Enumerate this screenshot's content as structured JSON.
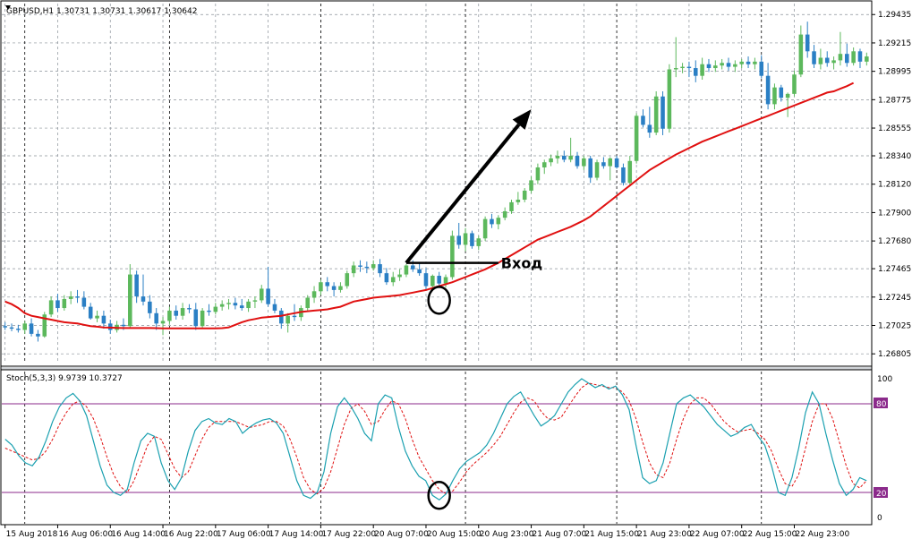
{
  "chart_data": {
    "type": "candlestick",
    "title": "GBPUSD,H1  1.30731 1.30731 1.30617 1.30642",
    "price_axis": {
      "ylim": [
        1.2673,
        1.2952
      ],
      "ticks": [
        "1.29435",
        "1.29215",
        "1.28995",
        "1.28775",
        "1.28555",
        "1.28340",
        "1.28120",
        "1.27900",
        "1.27680",
        "1.27465",
        "1.27245",
        "1.27025",
        "1.26805"
      ]
    },
    "colors": {
      "bull": "#5cb85c",
      "bear": "#2a7fc4",
      "ma": "#e01010",
      "annotation": "#000000",
      "stoch_main": "#1aa0b0",
      "stoch_signal": "#e01010",
      "level": "#8b2a8b",
      "grid": "#8a9199"
    },
    "candles": [
      [
        1.2702,
        1.2705,
        1.2699,
        1.2701
      ],
      [
        1.2701,
        1.2704,
        1.2698,
        1.27
      ],
      [
        1.27,
        1.2703,
        1.2697,
        1.2699
      ],
      [
        1.2699,
        1.2706,
        1.2696,
        1.2704
      ],
      [
        1.2704,
        1.2708,
        1.2694,
        1.2696
      ],
      [
        1.2696,
        1.2699,
        1.269,
        1.2694
      ],
      [
        1.2694,
        1.2713,
        1.2693,
        1.2711
      ],
      [
        1.2711,
        1.2725,
        1.2709,
        1.2722
      ],
      [
        1.2722,
        1.2727,
        1.2713,
        1.2716
      ],
      [
        1.2716,
        1.2726,
        1.2714,
        1.2723
      ],
      [
        1.2723,
        1.2729,
        1.2719,
        1.2725
      ],
      [
        1.2725,
        1.273,
        1.272,
        1.2724
      ],
      [
        1.2724,
        1.2729,
        1.2715,
        1.2717
      ],
      [
        1.2717,
        1.272,
        1.2707,
        1.2708
      ],
      [
        1.2708,
        1.2714,
        1.2705,
        1.271
      ],
      [
        1.271,
        1.2714,
        1.27,
        1.2704
      ],
      [
        1.2704,
        1.2707,
        1.2696,
        1.2699
      ],
      [
        1.2699,
        1.2706,
        1.2697,
        1.2703
      ],
      [
        1.2703,
        1.2708,
        1.2699,
        1.2702
      ],
      [
        1.2702,
        1.275,
        1.27,
        1.2742
      ],
      [
        1.2742,
        1.2745,
        1.272,
        1.2725
      ],
      [
        1.2725,
        1.2742,
        1.2718,
        1.2721
      ],
      [
        1.2721,
        1.2726,
        1.2708,
        1.2712
      ],
      [
        1.2712,
        1.2716,
        1.2699,
        1.2704
      ],
      [
        1.2704,
        1.2709,
        1.2695,
        1.2706
      ],
      [
        1.2706,
        1.2717,
        1.2703,
        1.2714
      ],
      [
        1.2714,
        1.2718,
        1.2707,
        1.271
      ],
      [
        1.271,
        1.272,
        1.2707,
        1.2716
      ],
      [
        1.2716,
        1.2719,
        1.2712,
        1.2715
      ],
      [
        1.2715,
        1.272,
        1.2699,
        1.2702
      ],
      [
        1.2702,
        1.2716,
        1.27,
        1.2714
      ],
      [
        1.2714,
        1.2719,
        1.271,
        1.2713
      ],
      [
        1.2713,
        1.272,
        1.2711,
        1.2717
      ],
      [
        1.2717,
        1.2722,
        1.2714,
        1.2719
      ],
      [
        1.2719,
        1.2723,
        1.2715,
        1.272
      ],
      [
        1.272,
        1.2724,
        1.2715,
        1.2718
      ],
      [
        1.2718,
        1.2723,
        1.2714,
        1.2716
      ],
      [
        1.2716,
        1.2723,
        1.2713,
        1.2721
      ],
      [
        1.2721,
        1.2725,
        1.2716,
        1.2722
      ],
      [
        1.2722,
        1.2734,
        1.272,
        1.2731
      ],
      [
        1.2731,
        1.2748,
        1.2717,
        1.2719
      ],
      [
        1.2719,
        1.2723,
        1.2712,
        1.2714
      ],
      [
        1.2714,
        1.2716,
        1.27,
        1.2704
      ],
      [
        1.2704,
        1.2712,
        1.2697,
        1.271
      ],
      [
        1.271,
        1.2719,
        1.2706,
        1.2709
      ],
      [
        1.2709,
        1.2718,
        1.2706,
        1.2716
      ],
      [
        1.2716,
        1.2726,
        1.2714,
        1.2724
      ],
      [
        1.2724,
        1.2733,
        1.272,
        1.2729
      ],
      [
        1.2729,
        1.2738,
        1.2726,
        1.2736
      ],
      [
        1.2736,
        1.274,
        1.2729,
        1.2733
      ],
      [
        1.2733,
        1.2736,
        1.2725,
        1.273
      ],
      [
        1.273,
        1.2736,
        1.2728,
        1.2733
      ],
      [
        1.2733,
        1.2745,
        1.2731,
        1.2743
      ],
      [
        1.2743,
        1.2752,
        1.274,
        1.2749
      ],
      [
        1.2749,
        1.2753,
        1.2744,
        1.2748
      ],
      [
        1.2748,
        1.2752,
        1.2743,
        1.2747
      ],
      [
        1.2747,
        1.2753,
        1.2745,
        1.275
      ],
      [
        1.275,
        1.2754,
        1.274,
        1.2743
      ],
      [
        1.2743,
        1.2747,
        1.2734,
        1.2736
      ],
      [
        1.2736,
        1.2744,
        1.2733,
        1.274
      ],
      [
        1.274,
        1.2746,
        1.2737,
        1.2742
      ],
      [
        1.2742,
        1.275,
        1.274,
        1.2749
      ],
      [
        1.2749,
        1.2753,
        1.2744,
        1.2746
      ],
      [
        1.2746,
        1.2751,
        1.2741,
        1.2743
      ],
      [
        1.2743,
        1.2747,
        1.273,
        1.2733
      ],
      [
        1.2733,
        1.2742,
        1.273,
        1.2741
      ],
      [
        1.2741,
        1.2744,
        1.2732,
        1.2735
      ],
      [
        1.2735,
        1.2742,
        1.2732,
        1.274
      ],
      [
        1.274,
        1.2776,
        1.2738,
        1.2772
      ],
      [
        1.2772,
        1.2782,
        1.2762,
        1.2765
      ],
      [
        1.2765,
        1.2778,
        1.276,
        1.2774
      ],
      [
        1.2774,
        1.2776,
        1.2762,
        1.2764
      ],
      [
        1.2764,
        1.2772,
        1.2761,
        1.277
      ],
      [
        1.277,
        1.2787,
        1.2768,
        1.2785
      ],
      [
        1.2785,
        1.2789,
        1.2778,
        1.2781
      ],
      [
        1.2781,
        1.2788,
        1.2777,
        1.2786
      ],
      [
        1.2786,
        1.2794,
        1.2784,
        1.2791
      ],
      [
        1.2791,
        1.28,
        1.2789,
        1.2798
      ],
      [
        1.2798,
        1.2806,
        1.2796,
        1.28
      ],
      [
        1.28,
        1.2809,
        1.2798,
        1.2807
      ],
      [
        1.2807,
        1.2818,
        1.2805,
        1.2815
      ],
      [
        1.2815,
        1.2828,
        1.2812,
        1.2825
      ],
      [
        1.2825,
        1.2831,
        1.282,
        1.2829
      ],
      [
        1.2829,
        1.2835,
        1.2826,
        1.2832
      ],
      [
        1.2832,
        1.2838,
        1.2828,
        1.2834
      ],
      [
        1.2834,
        1.2838,
        1.2829,
        1.2831
      ],
      [
        1.2831,
        1.2848,
        1.2829,
        1.2834
      ],
      [
        1.2834,
        1.2837,
        1.2824,
        1.2826
      ],
      [
        1.2826,
        1.2834,
        1.2823,
        1.2832
      ],
      [
        1.2832,
        1.2834,
        1.2813,
        1.2817
      ],
      [
        1.2817,
        1.2831,
        1.2815,
        1.2829
      ],
      [
        1.2829,
        1.2833,
        1.2824,
        1.2826
      ],
      [
        1.2826,
        1.2833,
        1.2815,
        1.2832
      ],
      [
        1.2832,
        1.2834,
        1.2824,
        1.2825
      ],
      [
        1.2825,
        1.2828,
        1.2811,
        1.2813
      ],
      [
        1.2813,
        1.2834,
        1.2811,
        1.283
      ],
      [
        1.283,
        1.2867,
        1.2828,
        1.2865
      ],
      [
        1.2865,
        1.287,
        1.2856,
        1.2858
      ],
      [
        1.2858,
        1.2872,
        1.2848,
        1.2852
      ],
      [
        1.2852,
        1.2884,
        1.285,
        1.288
      ],
      [
        1.288,
        1.2884,
        1.285,
        1.2855
      ],
      [
        1.2855,
        1.2905,
        1.2852,
        1.2901
      ],
      [
        1.2901,
        1.2926,
        1.2895,
        1.2902
      ],
      [
        1.2902,
        1.2906,
        1.2898,
        1.2903
      ],
      [
        1.2903,
        1.2907,
        1.2895,
        1.2902
      ],
      [
        1.2902,
        1.2908,
        1.2891,
        1.2896
      ],
      [
        1.2896,
        1.291,
        1.2893,
        1.2905
      ],
      [
        1.2905,
        1.2909,
        1.2899,
        1.2902
      ],
      [
        1.2902,
        1.2908,
        1.2899,
        1.2904
      ],
      [
        1.2904,
        1.2909,
        1.2901,
        1.2906
      ],
      [
        1.2906,
        1.291,
        1.29,
        1.2903
      ],
      [
        1.2903,
        1.2908,
        1.2899,
        1.2905
      ],
      [
        1.2905,
        1.2909,
        1.2902,
        1.2907
      ],
      [
        1.2907,
        1.2911,
        1.2902,
        1.2905
      ],
      [
        1.2905,
        1.291,
        1.2901,
        1.2907
      ],
      [
        1.2907,
        1.2912,
        1.2894,
        1.2896
      ],
      [
        1.2896,
        1.2906,
        1.287,
        1.2874
      ],
      [
        1.2874,
        1.289,
        1.287,
        1.2887
      ],
      [
        1.2887,
        1.2889,
        1.2876,
        1.2879
      ],
      [
        1.2879,
        1.2883,
        1.2864,
        1.2882
      ],
      [
        1.2882,
        1.29,
        1.288,
        1.2897
      ],
      [
        1.2897,
        1.2935,
        1.2895,
        1.2928
      ],
      [
        1.2928,
        1.2938,
        1.291,
        1.2915
      ],
      [
        1.2915,
        1.292,
        1.2902,
        1.2905
      ],
      [
        1.2905,
        1.2917,
        1.2901,
        1.291
      ],
      [
        1.291,
        1.2915,
        1.2903,
        1.2906
      ],
      [
        1.2906,
        1.2911,
        1.2901,
        1.2908
      ],
      [
        1.2908,
        1.293,
        1.2904,
        1.2913
      ],
      [
        1.2913,
        1.2921,
        1.2903,
        1.2906
      ],
      [
        1.2906,
        1.2918,
        1.2904,
        1.2915
      ],
      [
        1.2915,
        1.2917,
        1.2902,
        1.2907
      ],
      [
        1.2907,
        1.2914,
        1.2904,
        1.2911
      ]
    ],
    "moving_average": [
      1.2721,
      1.2719,
      1.2716,
      1.2712,
      1.271,
      1.2709,
      1.2708,
      1.2707,
      1.2706,
      1.2705,
      1.27045,
      1.2704,
      1.2703,
      1.2702,
      1.27015,
      1.2701,
      1.27008,
      1.27006,
      1.27005,
      1.27005,
      1.27005,
      1.27005,
      1.27005,
      1.27004,
      1.27003,
      1.27003,
      1.27002,
      1.27002,
      1.27002,
      1.27002,
      1.27002,
      1.27002,
      1.27002,
      1.27004,
      1.2701,
      1.2703,
      1.2705,
      1.27065,
      1.27075,
      1.27085,
      1.2709,
      1.27095,
      1.271,
      1.2711,
      1.2712,
      1.2713,
      1.27135,
      1.2714,
      1.27145,
      1.2715,
      1.2716,
      1.2717,
      1.2719,
      1.2721,
      1.2722,
      1.2723,
      1.2724,
      1.27245,
      1.2725,
      1.27255,
      1.2726,
      1.2727,
      1.2728,
      1.2729,
      1.273,
      1.27315,
      1.2733,
      1.27345,
      1.2736,
      1.2738,
      1.274,
      1.2742,
      1.2744,
      1.2746,
      1.27485,
      1.2751,
      1.2754,
      1.2757,
      1.276,
      1.2763,
      1.2766,
      1.2769,
      1.2771,
      1.2773,
      1.2775,
      1.2777,
      1.2779,
      1.27815,
      1.2784,
      1.2787,
      1.2791,
      1.2795,
      1.2799,
      1.2803,
      1.2807,
      1.2811,
      1.2815,
      1.2819,
      1.2823,
      1.2826,
      1.2829,
      1.2832,
      1.2835,
      1.28375,
      1.284,
      1.28425,
      1.2845,
      1.2847,
      1.2849,
      1.2851,
      1.2853,
      1.2855,
      1.2857,
      1.2859,
      1.2861,
      1.2863,
      1.2865,
      1.2867,
      1.2869,
      1.2871,
      1.2873,
      1.2875,
      1.2877,
      1.2879,
      1.2881,
      1.2883,
      1.2884,
      1.2886,
      1.2888,
      1.28905
    ],
    "annotation": {
      "label": "Вход",
      "entry_price": 1.2751,
      "entry_start_index": 61,
      "entry_end_index": 75,
      "arrow_start": [
        61,
        1.2751
      ],
      "arrow_end": [
        80,
        1.287
      ],
      "circle_price": [
        66,
        1.2722
      ],
      "circle_stoch": [
        66,
        18
      ]
    },
    "stochastic": {
      "label": "Stoch(5,3,3) 9.9739 10.3727",
      "levels": [
        80,
        20
      ],
      "level_labels": [
        "80",
        "20"
      ],
      "scale_labels": [
        "100",
        "0"
      ],
      "main": [
        56,
        52,
        45,
        40,
        38,
        44,
        55,
        68,
        78,
        84,
        87,
        82,
        72,
        55,
        38,
        25,
        20,
        18,
        22,
        40,
        55,
        60,
        58,
        40,
        28,
        22,
        30,
        48,
        62,
        68,
        70,
        67,
        66,
        70,
        68,
        60,
        64,
        67,
        69,
        70,
        67,
        60,
        44,
        28,
        18,
        16,
        20,
        34,
        60,
        78,
        84,
        78,
        70,
        60,
        55,
        80,
        86,
        84,
        64,
        48,
        38,
        31,
        28,
        18,
        15,
        19,
        28,
        36,
        41,
        44,
        47,
        52,
        60,
        70,
        80,
        85,
        88,
        80,
        72,
        65,
        68,
        72,
        80,
        88,
        93,
        97,
        94,
        91,
        93,
        90,
        92,
        86,
        76,
        52,
        30,
        26,
        28,
        40,
        60,
        80,
        84,
        86,
        82,
        78,
        72,
        66,
        62,
        58,
        60,
        64,
        66,
        58,
        52,
        38,
        20,
        18,
        30,
        50,
        74,
        88,
        80,
        60,
        42,
        26,
        18,
        22,
        30,
        28
      ],
      "signal": [
        50,
        48,
        46,
        44,
        42,
        43,
        48,
        56,
        66,
        74,
        80,
        82,
        78,
        70,
        58,
        44,
        32,
        24,
        20,
        28,
        40,
        52,
        58,
        56,
        46,
        36,
        30,
        34,
        45,
        56,
        64,
        68,
        68,
        68,
        68,
        66,
        64,
        65,
        66,
        68,
        68,
        65,
        56,
        44,
        30,
        22,
        19,
        23,
        34,
        50,
        66,
        77,
        80,
        75,
        66,
        68,
        76,
        82,
        80,
        70,
        56,
        44,
        36,
        28,
        22,
        19,
        21,
        27,
        34,
        39,
        43,
        47,
        52,
        58,
        66,
        74,
        81,
        84,
        82,
        75,
        70,
        69,
        71,
        78,
        85,
        91,
        94,
        93,
        92,
        91,
        91,
        88,
        82,
        70,
        54,
        40,
        32,
        30,
        40,
        56,
        70,
        80,
        84,
        84,
        80,
        74,
        68,
        64,
        61,
        62,
        63,
        60,
        56,
        48,
        36,
        26,
        24,
        32,
        50,
        68,
        80,
        80,
        70,
        54,
        38,
        26,
        23,
        28
      ]
    },
    "time_labels": [
      "15 Aug 2018",
      "16 Aug 06:00",
      "16 Aug 14:00",
      "16 Aug 22:00",
      "17 Aug 06:00",
      "17 Aug 14:00",
      "17 Aug 22:00",
      "20 Aug 07:00",
      "20 Aug 15:00",
      "20 Aug 23:00",
      "21 Aug 07:00",
      "21 Aug 15:00",
      "21 Aug 23:00",
      "22 Aug 07:00",
      "22 Aug 15:00",
      "22 Aug 23:00"
    ],
    "time_label_indices": [
      0,
      8,
      16,
      24,
      32,
      40,
      48,
      56,
      64,
      72,
      80,
      88,
      96,
      104,
      112,
      120
    ],
    "session_separator_indices": [
      3,
      25,
      48,
      70,
      93,
      115
    ]
  }
}
